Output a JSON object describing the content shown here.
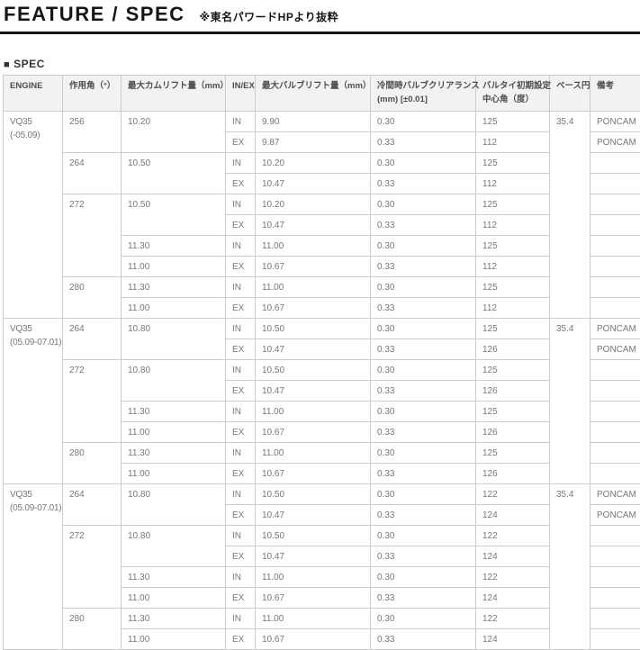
{
  "header": {
    "title": "FEATURE / SPEC",
    "note": "※東名パワードHPより抜粋"
  },
  "spec_section": {
    "bullet": "■",
    "label": "SPEC"
  },
  "spec_table": {
    "headers": [
      "ENGINE",
      "作用角（°）",
      "最大カムリフト量（mm）",
      "IN/EX",
      "最大バルブリフト量（mm）",
      "冷間時バルブクリアランス\n(mm) [±0.01]",
      "バルタイ初期設定\n中心角（度）",
      "ベース円",
      "備考"
    ],
    "sections": [
      {
        "engine": "VQ35",
        "engine_period": "(-05.09)",
        "base_circle": "35.4",
        "groups": [
          {
            "duration": "256",
            "rows": [
              {
                "cam_lift": "10.20",
                "cam_lift_rowspan": 2,
                "in_ex": "IN",
                "valve_lift": "9.90",
                "clearance": "0.30",
                "center_angle": "125",
                "note": "PONCAM"
              },
              {
                "in_ex": "EX",
                "valve_lift": "9.87",
                "clearance": "0.33",
                "center_angle": "112",
                "note": "PONCAM"
              }
            ]
          },
          {
            "duration": "264",
            "rows": [
              {
                "cam_lift": "10.50",
                "cam_lift_rowspan": 2,
                "in_ex": "IN",
                "valve_lift": "10.20",
                "clearance": "0.30",
                "center_angle": "125",
                "note": ""
              },
              {
                "in_ex": "EX",
                "valve_lift": "10.47",
                "clearance": "0.33",
                "center_angle": "112",
                "note": ""
              }
            ]
          },
          {
            "duration": "272",
            "rows": [
              {
                "cam_lift": "10.50",
                "cam_lift_rowspan": 2,
                "in_ex": "IN",
                "valve_lift": "10.20",
                "clearance": "0.30",
                "center_angle": "125",
                "note": ""
              },
              {
                "in_ex": "EX",
                "valve_lift": "10.47",
                "clearance": "0.33",
                "center_angle": "112",
                "note": ""
              },
              {
                "cam_lift": "11.30",
                "cam_lift_rowspan": 1,
                "in_ex": "IN",
                "valve_lift": "11.00",
                "clearance": "0.30",
                "center_angle": "125",
                "note": ""
              },
              {
                "cam_lift": "11.00",
                "cam_lift_rowspan": 1,
                "in_ex": "EX",
                "valve_lift": "10.67",
                "clearance": "0.33",
                "center_angle": "112",
                "note": ""
              }
            ]
          },
          {
            "duration": "280",
            "rows": [
              {
                "cam_lift": "11.30",
                "cam_lift_rowspan": 1,
                "in_ex": "IN",
                "valve_lift": "11.00",
                "clearance": "0.30",
                "center_angle": "125",
                "note": ""
              },
              {
                "cam_lift": "11.00",
                "cam_lift_rowspan": 1,
                "in_ex": "EX",
                "valve_lift": "10.67",
                "clearance": "0.33",
                "center_angle": "112",
                "note": ""
              }
            ]
          }
        ]
      },
      {
        "engine": "VQ35",
        "engine_period": "(05.09-07.01)",
        "base_circle": "35.4",
        "groups": [
          {
            "duration": "264",
            "rows": [
              {
                "cam_lift": "10.80",
                "cam_lift_rowspan": 2,
                "in_ex": "IN",
                "valve_lift": "10.50",
                "clearance": "0.30",
                "center_angle": "125",
                "note": "PONCAM"
              },
              {
                "in_ex": "EX",
                "valve_lift": "10.47",
                "clearance": "0.33",
                "center_angle": "126",
                "note": "PONCAM"
              }
            ]
          },
          {
            "duration": "272",
            "rows": [
              {
                "cam_lift": "10.80",
                "cam_lift_rowspan": 2,
                "in_ex": "IN",
                "valve_lift": "10.50",
                "clearance": "0.30",
                "center_angle": "125",
                "note": ""
              },
              {
                "in_ex": "EX",
                "valve_lift": "10.47",
                "clearance": "0.33",
                "center_angle": "126",
                "note": ""
              },
              {
                "cam_lift": "11.30",
                "cam_lift_rowspan": 1,
                "in_ex": "IN",
                "valve_lift": "11.00",
                "clearance": "0.30",
                "center_angle": "125",
                "note": ""
              },
              {
                "cam_lift": "11.00",
                "cam_lift_rowspan": 1,
                "in_ex": "EX",
                "valve_lift": "10.67",
                "clearance": "0.33",
                "center_angle": "126",
                "note": ""
              }
            ]
          },
          {
            "duration": "280",
            "rows": [
              {
                "cam_lift": "11.30",
                "cam_lift_rowspan": 1,
                "in_ex": "IN",
                "valve_lift": "11.00",
                "clearance": "0.30",
                "center_angle": "125",
                "note": ""
              },
              {
                "cam_lift": "11.00",
                "cam_lift_rowspan": 1,
                "in_ex": "EX",
                "valve_lift": "10.67",
                "clearance": "0.33",
                "center_angle": "126",
                "note": ""
              }
            ]
          }
        ]
      },
      {
        "engine": "VQ35",
        "engine_period": "(05.09-07.01)",
        "base_circle": "35.4",
        "groups": [
          {
            "duration": "264",
            "rows": [
              {
                "cam_lift": "10.80",
                "cam_lift_rowspan": 2,
                "in_ex": "IN",
                "valve_lift": "10.50",
                "clearance": "0.30",
                "center_angle": "122",
                "note": "PONCAM"
              },
              {
                "in_ex": "EX",
                "valve_lift": "10.47",
                "clearance": "0.33",
                "center_angle": "124",
                "note": "PONCAM"
              }
            ]
          },
          {
            "duration": "272",
            "rows": [
              {
                "cam_lift": "10.80",
                "cam_lift_rowspan": 2,
                "in_ex": "IN",
                "valve_lift": "10.50",
                "clearance": "0.30",
                "center_angle": "122",
                "note": ""
              },
              {
                "in_ex": "EX",
                "valve_lift": "10.47",
                "clearance": "0.33",
                "center_angle": "124",
                "note": ""
              },
              {
                "cam_lift": "11.30",
                "cam_lift_rowspan": 1,
                "in_ex": "IN",
                "valve_lift": "11.00",
                "clearance": "0.30",
                "center_angle": "122",
                "note": ""
              },
              {
                "cam_lift": "11.00",
                "cam_lift_rowspan": 1,
                "in_ex": "EX",
                "valve_lift": "10.67",
                "clearance": "0.33",
                "center_angle": "124",
                "note": ""
              }
            ]
          },
          {
            "duration": "280",
            "rows": [
              {
                "cam_lift": "11.30",
                "cam_lift_rowspan": 1,
                "in_ex": "IN",
                "valve_lift": "11.00",
                "clearance": "0.30",
                "center_angle": "122",
                "note": ""
              },
              {
                "cam_lift": "11.00",
                "cam_lift_rowspan": 1,
                "in_ex": "EX",
                "valve_lift": "10.67",
                "clearance": "0.33",
                "center_angle": "124",
                "note": ""
              }
            ]
          }
        ]
      }
    ]
  }
}
